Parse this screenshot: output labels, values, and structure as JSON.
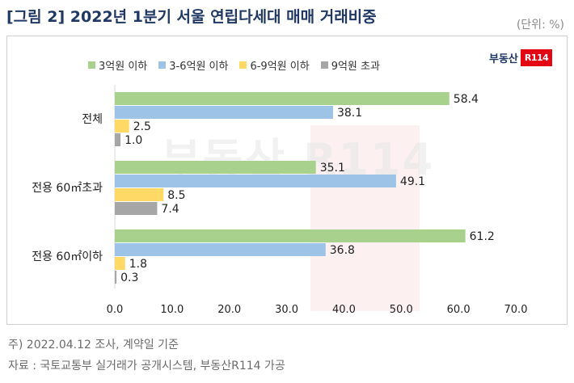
{
  "header": {
    "title": "[그림 2] 2022년 1분기 서울 연립다세대 매매 거래비중",
    "unit": "(단위: %)"
  },
  "logo": {
    "text": "부동산",
    "box": "R114"
  },
  "footnotes": {
    "note": "주) 2022.04.12 조사, 계약일 기준",
    "source": "자료 : 국토교통부 실거래가 공개시스템, 부동산R114 가공"
  },
  "colors": {
    "series1": "#a9d18e",
    "series2": "#9dc3e6",
    "series3": "#ffd966",
    "series4": "#a6a6a6"
  },
  "chart_data": {
    "type": "bar",
    "orientation": "horizontal",
    "categories": [
      "전체",
      "전용 60㎡초과",
      "전용 60㎡이하"
    ],
    "series": [
      {
        "name": "3억원 이하",
        "values": [
          58.4,
          35.1,
          61.2
        ]
      },
      {
        "name": "3-6억원 이하",
        "values": [
          38.1,
          49.1,
          36.8
        ]
      },
      {
        "name": "6-9억원 이하",
        "values": [
          2.5,
          8.5,
          1.8
        ]
      },
      {
        "name": "9억원 초과",
        "values": [
          1.0,
          7.4,
          0.3
        ]
      }
    ],
    "xlim": [
      0,
      70
    ],
    "xticks": [
      "0.0",
      "10.0",
      "20.0",
      "30.0",
      "40.0",
      "50.0",
      "60.0",
      "70.0"
    ],
    "grid": false,
    "legend": "top"
  }
}
